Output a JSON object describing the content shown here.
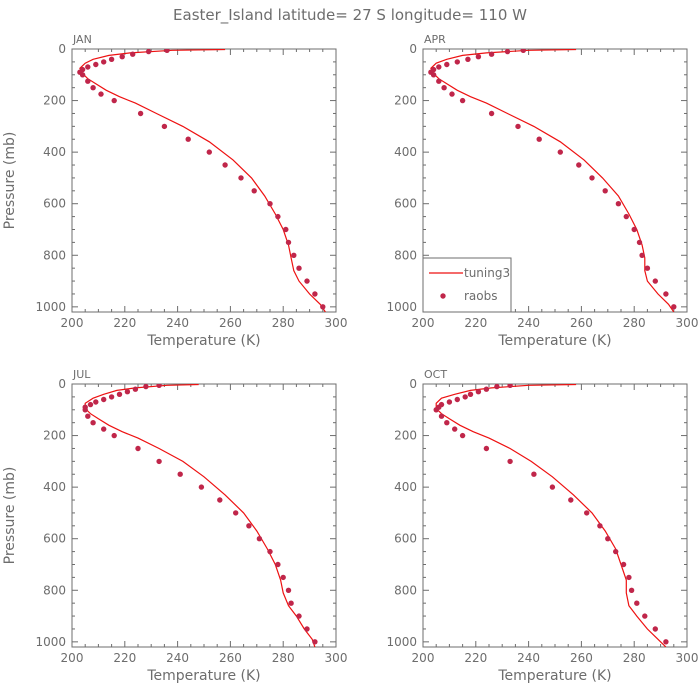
{
  "title": "Easter_Island   latitude=  27 S longitude= 110 W",
  "colors": {
    "model": "#ee1111",
    "obs": "#c0264a",
    "axis": "#6d6d6d",
    "background": "#ffffff"
  },
  "legend": {
    "model_label": "tuning3",
    "obs_label": "raobs",
    "panel": "APR",
    "placement": "lower-left"
  },
  "chart_data": [
    {
      "type": "line",
      "panel_label": "JAN",
      "xlabel": "Temperature (K)",
      "ylabel": "Pressure (mb)",
      "xlim": [
        200,
        300
      ],
      "ylim": [
        1020,
        0
      ],
      "xticks": [
        200,
        220,
        240,
        260,
        280,
        300
      ],
      "yticks": [
        0,
        200,
        400,
        600,
        800,
        1000
      ],
      "series": [
        {
          "name": "tuning3",
          "kind": "line",
          "x": [
            258,
            238,
            222,
            214,
            208,
            205,
            203,
            204,
            206,
            209,
            213,
            218,
            224,
            232,
            242,
            252,
            261,
            268,
            273,
            277,
            280,
            282,
            283,
            284,
            286,
            290,
            294,
            296
          ],
          "y": [
            2,
            5,
            15,
            25,
            40,
            55,
            75,
            95,
            115,
            135,
            160,
            185,
            210,
            250,
            300,
            360,
            430,
            500,
            570,
            640,
            700,
            760,
            810,
            860,
            900,
            950,
            990,
            1020
          ]
        },
        {
          "name": "raobs",
          "kind": "scatter",
          "x": [
            236,
            229,
            223,
            219,
            215,
            212,
            209,
            206,
            204,
            203,
            204,
            206,
            208,
            211,
            216,
            226,
            235,
            244,
            252,
            258,
            264,
            269,
            275,
            278,
            281,
            282,
            284,
            286,
            289,
            292,
            295
          ],
          "y": [
            5,
            10,
            20,
            30,
            40,
            50,
            60,
            70,
            80,
            90,
            100,
            125,
            150,
            175,
            200,
            250,
            300,
            350,
            400,
            450,
            500,
            550,
            600,
            650,
            700,
            750,
            800,
            850,
            900,
            950,
            1000
          ]
        }
      ]
    },
    {
      "type": "line",
      "panel_label": "APR",
      "xlabel": "Temperature (K)",
      "ylabel": "",
      "xlim": [
        200,
        300
      ],
      "ylim": [
        1020,
        0
      ],
      "xticks": [
        200,
        220,
        240,
        260,
        280,
        300
      ],
      "yticks": [
        0,
        200,
        400,
        600,
        800,
        1000
      ],
      "series": [
        {
          "name": "tuning3",
          "kind": "line",
          "x": [
            258,
            240,
            224,
            215,
            209,
            205,
            203,
            204,
            206,
            209,
            213,
            218,
            224,
            232,
            242,
            252,
            261,
            268,
            274,
            278,
            281,
            283,
            284,
            284,
            285,
            289,
            293,
            295
          ],
          "y": [
            2,
            5,
            15,
            25,
            40,
            55,
            75,
            95,
            115,
            135,
            160,
            185,
            210,
            250,
            300,
            360,
            430,
            500,
            570,
            640,
            700,
            760,
            810,
            860,
            900,
            950,
            990,
            1020
          ]
        },
        {
          "name": "raobs",
          "kind": "scatter",
          "x": [
            238,
            232,
            226,
            221,
            217,
            213,
            209,
            206,
            204,
            203,
            204,
            206,
            208,
            211,
            215,
            226,
            236,
            244,
            252,
            259,
            264,
            269,
            274,
            277,
            280,
            282,
            283,
            285,
            288,
            292,
            295
          ],
          "y": [
            5,
            10,
            20,
            30,
            40,
            50,
            60,
            70,
            80,
            90,
            100,
            125,
            150,
            175,
            200,
            250,
            300,
            350,
            400,
            450,
            500,
            550,
            600,
            650,
            700,
            750,
            800,
            850,
            900,
            950,
            1000
          ]
        }
      ]
    },
    {
      "type": "line",
      "panel_label": "JUL",
      "xlabel": "Temperature (K)",
      "ylabel": "Pressure (mb)",
      "xlim": [
        200,
        300
      ],
      "ylim": [
        1020,
        0
      ],
      "xticks": [
        200,
        220,
        240,
        260,
        280,
        300
      ],
      "yticks": [
        0,
        200,
        400,
        600,
        800,
        1000
      ],
      "series": [
        {
          "name": "tuning3",
          "kind": "line",
          "x": [
            248,
            236,
            224,
            217,
            212,
            208,
            205,
            205,
            207,
            210,
            214,
            219,
            225,
            233,
            242,
            250,
            258,
            265,
            270,
            274,
            277,
            279,
            280,
            282,
            285,
            288,
            291,
            292
          ],
          "y": [
            2,
            5,
            15,
            25,
            40,
            55,
            75,
            95,
            115,
            135,
            160,
            185,
            210,
            250,
            300,
            360,
            430,
            500,
            570,
            640,
            700,
            760,
            810,
            860,
            900,
            950,
            990,
            1020
          ]
        },
        {
          "name": "raobs",
          "kind": "scatter",
          "x": [
            233,
            228,
            224,
            221,
            218,
            215,
            212,
            209,
            207,
            205,
            205,
            206,
            208,
            212,
            216,
            225,
            233,
            241,
            249,
            256,
            262,
            267,
            271,
            275,
            278,
            280,
            282,
            283,
            286,
            289,
            292
          ],
          "y": [
            5,
            10,
            20,
            30,
            40,
            50,
            60,
            70,
            80,
            90,
            100,
            125,
            150,
            175,
            200,
            250,
            300,
            350,
            400,
            450,
            500,
            550,
            600,
            650,
            700,
            750,
            800,
            850,
            900,
            950,
            1000
          ]
        }
      ]
    },
    {
      "type": "line",
      "panel_label": "OCT",
      "xlabel": "Temperature (K)",
      "ylabel": "",
      "xlim": [
        200,
        300
      ],
      "ylim": [
        1020,
        0
      ],
      "xticks": [
        200,
        220,
        240,
        260,
        280,
        300
      ],
      "yticks": [
        0,
        200,
        400,
        600,
        800,
        1000
      ],
      "series": [
        {
          "name": "tuning3",
          "kind": "line",
          "x": [
            258,
            240,
            226,
            218,
            212,
            207,
            205,
            205,
            207,
            210,
            214,
            219,
            225,
            233,
            241,
            249,
            257,
            264,
            269,
            273,
            275,
            277,
            277,
            278,
            281,
            285,
            289,
            292
          ],
          "y": [
            2,
            5,
            15,
            25,
            40,
            55,
            75,
            95,
            115,
            135,
            160,
            185,
            210,
            250,
            300,
            360,
            430,
            500,
            570,
            640,
            700,
            760,
            810,
            860,
            900,
            950,
            990,
            1020
          ]
        },
        {
          "name": "raobs",
          "kind": "scatter",
          "x": [
            233,
            228,
            224,
            221,
            218,
            216,
            213,
            210,
            207,
            206,
            205,
            207,
            209,
            212,
            215,
            224,
            233,
            242,
            249,
            256,
            262,
            267,
            270,
            273,
            276,
            278,
            279,
            281,
            284,
            288,
            292
          ],
          "y": [
            5,
            10,
            20,
            30,
            40,
            50,
            60,
            70,
            80,
            90,
            100,
            125,
            150,
            175,
            200,
            250,
            300,
            350,
            400,
            450,
            500,
            550,
            600,
            650,
            700,
            750,
            800,
            850,
            900,
            950,
            1000
          ]
        }
      ]
    }
  ]
}
